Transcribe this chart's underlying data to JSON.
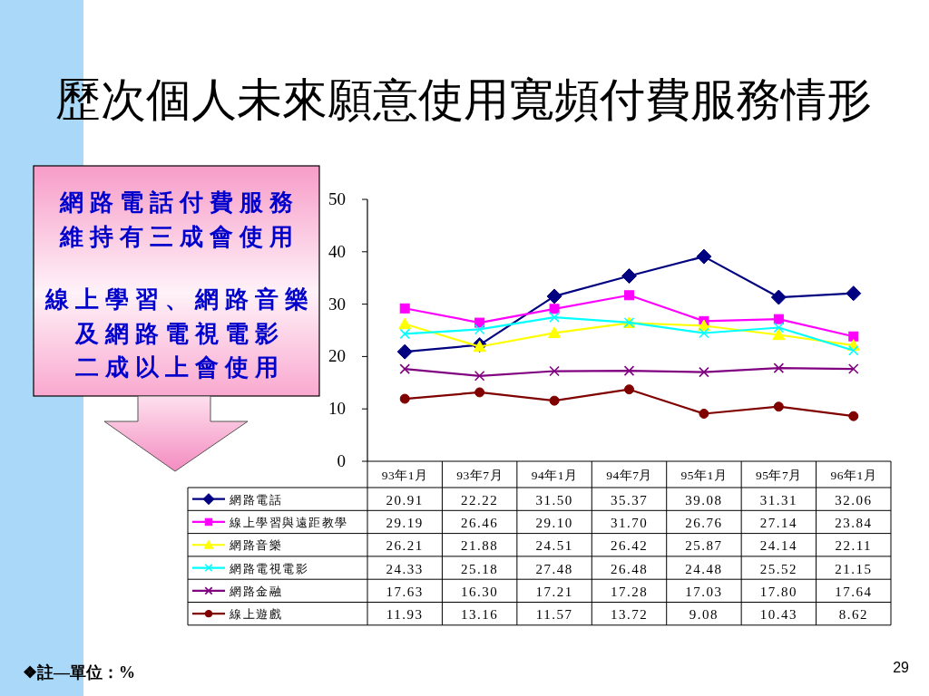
{
  "chart_data": {
    "type": "line",
    "title": "歷次個人未來願意使用寬頻付費服務情形",
    "categories": [
      "93年1月",
      "93年7月",
      "94年1月",
      "94年7月",
      "95年1月",
      "95年7月",
      "96年1月"
    ],
    "series": [
      {
        "name": "網路電話",
        "color": "#000080",
        "marker": "diamond",
        "values": [
          20.91,
          22.22,
          31.5,
          35.37,
          39.08,
          31.31,
          32.06
        ],
        "value_labels": [
          "20.91",
          "22.22",
          "31.50",
          "35.37",
          "39.08",
          "31.31",
          "32.06"
        ]
      },
      {
        "name": "線上學習與遠距教學",
        "color": "#ff00ff",
        "marker": "square",
        "values": [
          29.19,
          26.46,
          29.1,
          31.7,
          26.76,
          27.14,
          23.84
        ],
        "value_labels": [
          "29.19",
          "26.46",
          "29.10",
          "31.70",
          "26.76",
          "27.14",
          "23.84"
        ]
      },
      {
        "name": "網路音樂",
        "color": "#ffff00",
        "marker": "triangle",
        "values": [
          26.21,
          21.88,
          24.51,
          26.42,
          25.87,
          24.14,
          22.11
        ],
        "value_labels": [
          "26.21",
          "21.88",
          "24.51",
          "26.42",
          "25.87",
          "24.14",
          "22.11"
        ]
      },
      {
        "name": "網路電視電影",
        "color": "#00ffff",
        "marker": "cross",
        "values": [
          24.33,
          25.18,
          27.48,
          26.48,
          24.48,
          25.52,
          21.15
        ],
        "value_labels": [
          "24.33",
          "25.18",
          "27.48",
          "26.48",
          "24.48",
          "25.52",
          "21.15"
        ]
      },
      {
        "name": "網路金融",
        "color": "#800080",
        "marker": "cross",
        "values": [
          17.63,
          16.3,
          17.21,
          17.28,
          17.03,
          17.8,
          17.64
        ],
        "value_labels": [
          "17.63",
          "16.30",
          "17.21",
          "17.28",
          "17.03",
          "17.80",
          "17.64"
        ]
      },
      {
        "name": "線上遊戲",
        "color": "#800000",
        "marker": "circle",
        "values": [
          11.93,
          13.16,
          11.57,
          13.72,
          9.08,
          10.43,
          8.62
        ],
        "value_labels": [
          "11.93",
          "13.16",
          "11.57",
          "13.72",
          "9.08",
          "10.43",
          "8.62"
        ]
      }
    ],
    "ylim": [
      0,
      50
    ],
    "yticks": [
      0,
      10,
      20,
      30,
      40,
      50
    ],
    "legend": "bottom",
    "annotations": [
      "網路電話付費服務維持有三成會使用",
      "線上學習、網路音樂及網路電視電影二成以上會使用",
      "❖註—單位：%",
      "29"
    ]
  }
}
